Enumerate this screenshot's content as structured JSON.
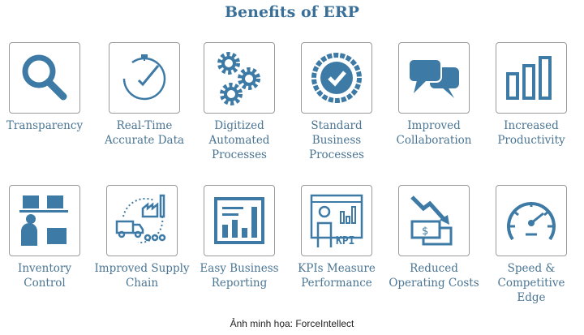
{
  "title": "Benefits of ERP",
  "accent": "#3d7aa5",
  "benefits": [
    {
      "label": "Transparency",
      "icon": "magnifier-icon"
    },
    {
      "label": "Real-Time Accurate Data",
      "icon": "stopwatch-icon"
    },
    {
      "label": "Digitized Automated Processes",
      "icon": "gears-icon"
    },
    {
      "label": "Standard Business Processes",
      "icon": "checkmark-badge-icon"
    },
    {
      "label": "Improved Collaboration",
      "icon": "speech-bubbles-icon"
    },
    {
      "label": "Increased Productivity",
      "icon": "bar-chart-icon"
    },
    {
      "label": "Inventory Control",
      "icon": "inventory-worker-icon"
    },
    {
      "label": "Improved Supply Chain",
      "icon": "supply-chain-icon"
    },
    {
      "label": "Easy Business Reporting",
      "icon": "report-chart-icon"
    },
    {
      "label": "KPIs Measure Performance",
      "icon": "kpi-presenter-icon",
      "icon_text": "KPI"
    },
    {
      "label": "Reduced Operating Costs",
      "icon": "falling-money-icon",
      "icon_text": "$"
    },
    {
      "label": "Speed & Competitive Edge",
      "icon": "speedometer-icon"
    }
  ],
  "caption": "Ảnh minh họa: ForceIntellect"
}
